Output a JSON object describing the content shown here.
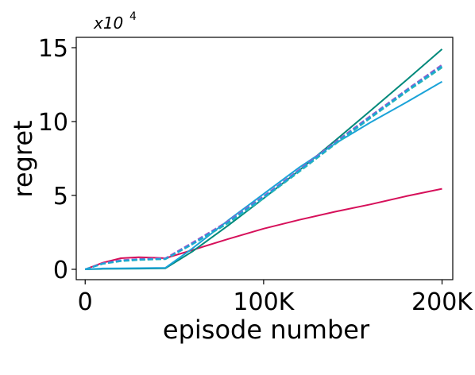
{
  "chart_data": {
    "type": "line",
    "xlabel": "episode number",
    "ylabel": "regret",
    "scale_note": {
      "base": "x10",
      "exponent": "4"
    },
    "xlim": [
      -5000,
      206000
    ],
    "ylim": [
      -0.7,
      15.7
    ],
    "x_ticks": [
      {
        "value": 0,
        "label": "0"
      },
      {
        "value": 100000,
        "label": "100K"
      },
      {
        "value": 200000,
        "label": "200K"
      }
    ],
    "y_ticks": [
      {
        "value": 0,
        "label": "0"
      },
      {
        "value": 5,
        "label": "5"
      },
      {
        "value": 10,
        "label": "10"
      },
      {
        "value": 15,
        "label": "15"
      }
    ],
    "grid": false,
    "series": [
      {
        "color": "#d6105a",
        "x": [
          0,
          10000,
          20000,
          30000,
          40000,
          45000,
          60000,
          80000,
          100000,
          120000,
          140000,
          160000,
          180000,
          200000
        ],
        "y": [
          0,
          0.45,
          0.75,
          0.82,
          0.78,
          0.75,
          1.3,
          2.05,
          2.75,
          3.35,
          3.9,
          4.4,
          4.95,
          5.45
        ]
      },
      {
        "color": "#00897b",
        "x": [
          0,
          10000,
          20000,
          30000,
          40000,
          45000,
          60000,
          80000,
          100000,
          120000,
          140000,
          160000,
          180000,
          200000
        ],
        "y": [
          0,
          0.03,
          0.04,
          0.05,
          0.06,
          0.07,
          1.2,
          2.95,
          4.8,
          6.7,
          8.7,
          10.75,
          12.8,
          14.9
        ]
      },
      {
        "color": "#1ba3d8",
        "x": [
          0,
          10000,
          20000,
          30000,
          40000,
          45000,
          60000,
          80000,
          100000,
          120000,
          140000,
          160000,
          180000,
          200000
        ],
        "y": [
          0,
          0.06,
          0.07,
          0.08,
          0.09,
          0.1,
          1.4,
          3.3,
          5.1,
          6.9,
          8.5,
          9.95,
          11.3,
          12.7
        ]
      },
      {
        "color": "#6b8ed6",
        "x": [
          0,
          10000,
          20000,
          30000,
          40000,
          45000,
          60000,
          80000,
          100000,
          120000,
          140000,
          160000,
          180000,
          200000
        ],
        "y": [
          0,
          0.4,
          0.6,
          0.68,
          0.72,
          0.72,
          1.75,
          3.2,
          4.9,
          6.7,
          8.55,
          10.35,
          12.1,
          13.8
        ]
      },
      {
        "color": "#9b59c9",
        "x": [
          0,
          10000,
          20000,
          30000,
          40000,
          45000,
          60000,
          80000,
          100000,
          120000,
          140000,
          160000,
          180000,
          200000
        ],
        "y": [
          0,
          0.42,
          0.62,
          0.7,
          0.74,
          0.75,
          1.8,
          3.25,
          4.95,
          6.75,
          8.6,
          10.4,
          12.15,
          13.85
        ]
      },
      {
        "color": "#7fb9c9",
        "x": [
          0,
          10000,
          20000,
          30000,
          40000,
          45000,
          60000,
          80000,
          100000,
          120000,
          140000,
          160000,
          180000,
          200000
        ],
        "y": [
          0,
          0.38,
          0.57,
          0.65,
          0.69,
          0.7,
          1.7,
          3.15,
          4.85,
          6.65,
          8.5,
          10.3,
          12.05,
          13.7
        ]
      },
      {
        "color": "#2cb8b0",
        "x": [
          0,
          10000,
          20000,
          30000,
          40000,
          45000,
          60000,
          80000,
          100000,
          120000,
          140000,
          160000,
          180000,
          200000
        ],
        "y": [
          0,
          0.37,
          0.55,
          0.63,
          0.67,
          0.68,
          1.68,
          3.1,
          4.8,
          6.6,
          8.45,
          10.25,
          12.0,
          13.65
        ]
      },
      {
        "color": "#1ba3d8",
        "x": [
          0,
          10000,
          20000,
          30000,
          40000,
          45000,
          60000,
          80000,
          100000,
          120000,
          140000,
          160000,
          180000,
          200000
        ],
        "y": [
          0,
          0.39,
          0.58,
          0.66,
          0.7,
          0.71,
          1.72,
          3.18,
          4.88,
          6.68,
          8.52,
          10.32,
          12.08,
          13.75
        ]
      }
    ]
  }
}
